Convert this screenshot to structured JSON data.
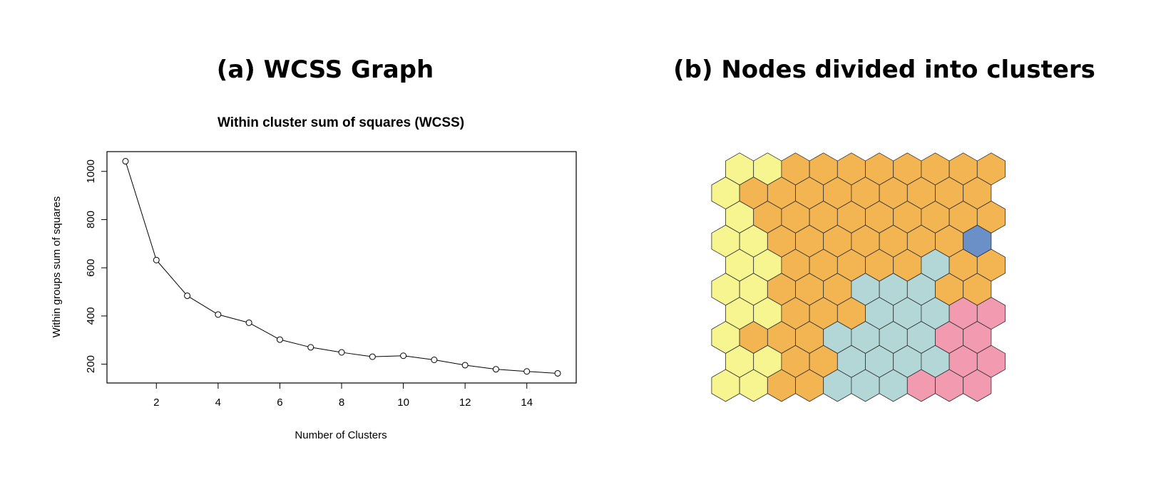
{
  "panel_a": {
    "heading": "(a) WCSS Graph"
  },
  "panel_b": {
    "heading": "(b) Nodes divided into clusters"
  },
  "chart_data": [
    {
      "type": "line",
      "title": "Within cluster sum of squares (WCSS)",
      "xlabel": "Number of Clusters",
      "ylabel": "Within groups sum of squares",
      "x": [
        1,
        2,
        3,
        4,
        5,
        6,
        7,
        8,
        9,
        10,
        11,
        12,
        13,
        14,
        15
      ],
      "series": [
        {
          "values": [
            1042,
            632,
            484,
            406,
            372,
            302,
            270,
            249,
            231,
            235,
            218,
            196,
            179,
            170,
            162
          ]
        }
      ],
      "xticks": [
        2,
        4,
        6,
        8,
        10,
        12,
        14
      ],
      "yticks": [
        200,
        400,
        600,
        800,
        1000
      ],
      "xlim": [
        0.4,
        15.6
      ],
      "ylim": [
        122,
        1082
      ],
      "marker": "open-circle",
      "grid": false,
      "legend": "none"
    },
    {
      "type": "heatmap",
      "description": "Hexagonal grid 10 columns x 10 rows, each cell colored by cluster id (row 0 = bottom)",
      "clusters": [
        {
          "id": 1,
          "color": "#f7f58f"
        },
        {
          "id": 2,
          "color": "#f2b552"
        },
        {
          "id": 3,
          "color": "#b3d6d6"
        },
        {
          "id": 4,
          "color": "#f29bb0"
        },
        {
          "id": 5,
          "color": "#6b8fc7"
        }
      ],
      "grid": [
        [
          1,
          1,
          2,
          2,
          3,
          3,
          3,
          4,
          4,
          4
        ],
        [
          1,
          1,
          2,
          2,
          3,
          3,
          3,
          3,
          4,
          4
        ],
        [
          1,
          2,
          2,
          2,
          3,
          3,
          3,
          3,
          4,
          4
        ],
        [
          1,
          1,
          2,
          2,
          2,
          3,
          3,
          3,
          4,
          4
        ],
        [
          1,
          1,
          2,
          2,
          2,
          3,
          3,
          3,
          2,
          2
        ],
        [
          1,
          1,
          2,
          2,
          2,
          2,
          2,
          3,
          2,
          2
        ],
        [
          1,
          1,
          2,
          2,
          2,
          2,
          2,
          2,
          2,
          5
        ],
        [
          1,
          2,
          2,
          2,
          2,
          2,
          2,
          2,
          2,
          2
        ],
        [
          1,
          2,
          2,
          2,
          2,
          2,
          2,
          2,
          2,
          2
        ],
        [
          1,
          1,
          2,
          2,
          2,
          2,
          2,
          2,
          2,
          2
        ]
      ]
    }
  ]
}
